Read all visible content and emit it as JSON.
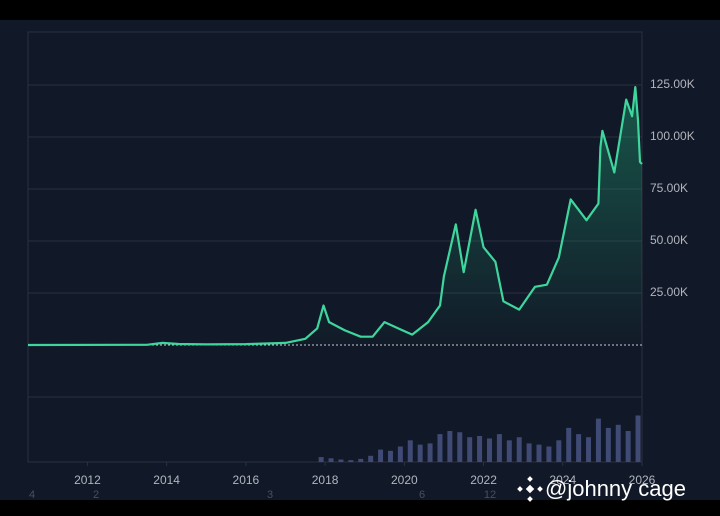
{
  "chart_data": {
    "type": "line",
    "xlim": [
      2010.5,
      2026
    ],
    "xticks": [
      2012,
      2014,
      2016,
      2018,
      2020,
      2022,
      2024,
      2026
    ],
    "ylim": [
      -25000,
      150000
    ],
    "yticks": [
      {
        "value": 25000,
        "label": "25.00K"
      },
      {
        "value": 50000,
        "label": "50.00K"
      },
      {
        "value": 75000,
        "label": "75.00K"
      },
      {
        "value": 100000,
        "label": "100.00K"
      },
      {
        "value": 125000,
        "label": "125.00K"
      }
    ],
    "grid": true,
    "series": [
      {
        "color": "#3fd69d",
        "x": [
          2010.5,
          2013.5,
          2013.9,
          2014.3,
          2015,
          2016,
          2017,
          2017.5,
          2017.8,
          2017.96,
          2018.1,
          2018.5,
          2018.9,
          2019.2,
          2019.5,
          2019.9,
          2020.2,
          2020.6,
          2020.9,
          2021.0,
          2021.3,
          2021.5,
          2021.8,
          2022.0,
          2022.3,
          2022.5,
          2022.9,
          2023.3,
          2023.6,
          2023.9,
          2024.2,
          2024.6,
          2024.9,
          2024.95,
          2025.0,
          2025.3,
          2025.6,
          2025.75,
          2025.83,
          2025.9,
          2025.95,
          2026.0
        ],
        "values": [
          0,
          100,
          1000,
          500,
          300,
          450,
          1000,
          3000,
          8000,
          19000,
          11000,
          7000,
          4000,
          4000,
          11000,
          7500,
          5000,
          11000,
          19000,
          33000,
          58000,
          35000,
          65000,
          47000,
          40000,
          21000,
          17000,
          28000,
          29000,
          42000,
          70000,
          60000,
          68000,
          95000,
          103000,
          83000,
          118000,
          110000,
          124000,
          108000,
          88000,
          87000
        ]
      }
    ],
    "volume": {
      "color": "#3f4a75",
      "y2lim": [
        0,
        100
      ],
      "x": [
        2017.9,
        2018.15,
        2018.4,
        2018.65,
        2018.9,
        2019.15,
        2019.4,
        2019.65,
        2019.9,
        2020.15,
        2020.4,
        2020.65,
        2020.9,
        2021.15,
        2021.4,
        2021.65,
        2021.9,
        2022.15,
        2022.4,
        2022.65,
        2022.9,
        2023.15,
        2023.4,
        2023.65,
        2023.9,
        2024.15,
        2024.4,
        2024.65,
        2024.9,
        2025.15,
        2025.4,
        2025.65,
        2025.9
      ],
      "values": [
        8,
        6,
        4,
        3,
        5,
        10,
        20,
        18,
        25,
        35,
        28,
        30,
        45,
        50,
        48,
        40,
        42,
        38,
        45,
        35,
        40,
        30,
        28,
        25,
        35,
        55,
        45,
        40,
        70,
        55,
        60,
        50,
        75
      ]
    },
    "annotations": [
      "4",
      "2",
      "3",
      "6",
      "12"
    ],
    "watermark": "@johnny cage"
  }
}
